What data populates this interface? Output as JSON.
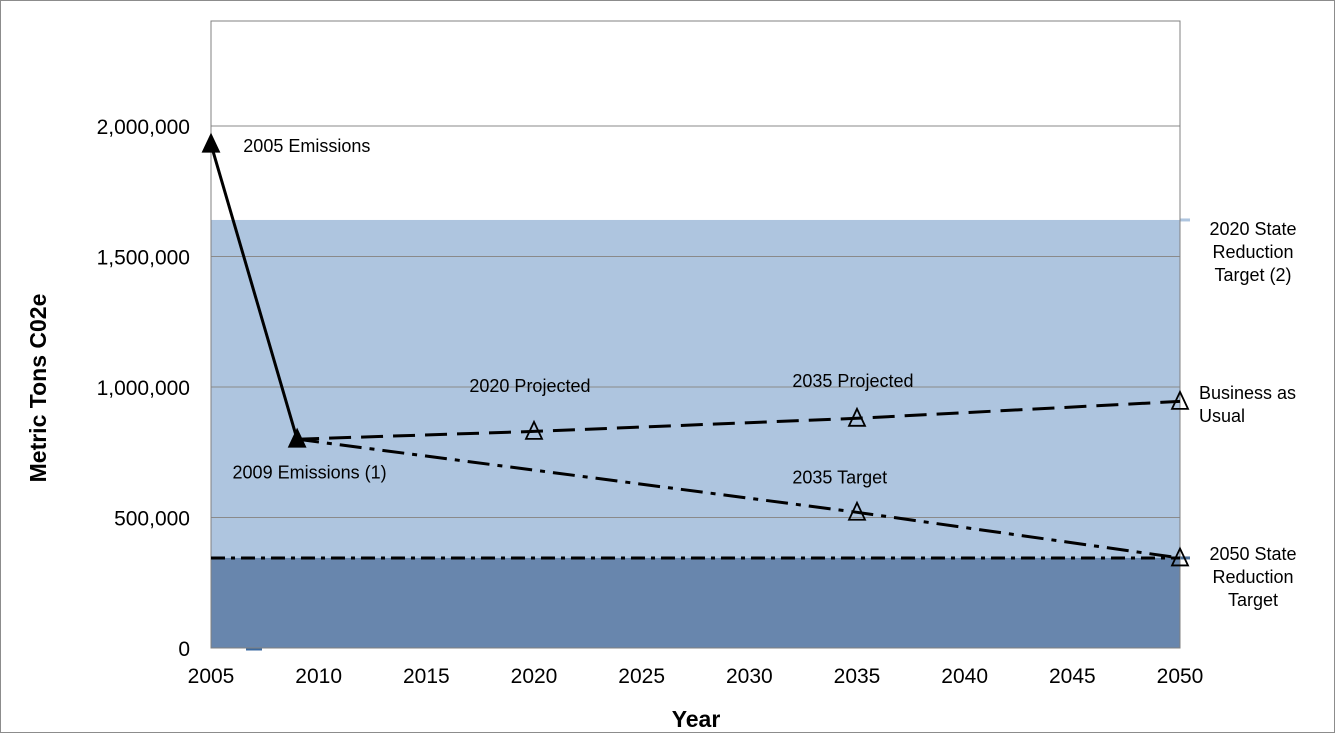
{
  "chart_data": {
    "type": "line",
    "xlabel": "Year",
    "ylabel": "Metric Tons C02e",
    "xlim": [
      2005,
      2050
    ],
    "ylim": [
      0,
      2000000
    ],
    "grid": true,
    "x_ticks": [
      2005,
      2010,
      2015,
      2020,
      2025,
      2030,
      2035,
      2040,
      2045,
      2050
    ],
    "x_tick_labels": [
      "2005",
      "2010",
      "2015",
      "2020",
      "2025",
      "2030",
      "2035",
      "2040",
      "2045",
      "2050"
    ],
    "y_ticks": [
      0,
      500000,
      1000000,
      1500000,
      2000000
    ],
    "y_tick_labels": [
      "0",
      "500,000",
      "1,000,000",
      "1,500,000",
      "2,000,000"
    ],
    "bands": [
      {
        "label": "2020 State Reduction Target (2)",
        "value": 1640000,
        "color": "#aec5df"
      },
      {
        "label": "2050 State Reduction Target",
        "value": 345000,
        "color": "#6886ad"
      }
    ],
    "series": [
      {
        "style": "solid",
        "marker": "filled-triangle",
        "color": "#000000",
        "x": [
          2005,
          2009
        ],
        "y": [
          1930000,
          800000
        ]
      },
      {
        "style": "dashed",
        "marker": "open-triangle",
        "color": "#000000",
        "x": [
          2009,
          2020,
          2035,
          2050
        ],
        "y": [
          800000,
          830000,
          880000,
          945000
        ]
      },
      {
        "style": "dash-dot",
        "marker": "open-triangle",
        "color": "#000000",
        "x": [
          2009,
          2035,
          2050
        ],
        "y": [
          800000,
          520000,
          345000
        ]
      },
      {
        "style": "dash-dot-thin",
        "marker": "none",
        "color": "#000000",
        "x": [
          2005,
          2050
        ],
        "y": [
          345000,
          345000
        ]
      }
    ],
    "annotations": [
      {
        "text": "2005 Emissions",
        "x": 2006.5,
        "y": 1900000
      },
      {
        "text": "2009 Emissions (1)",
        "x": 2006,
        "y": 650000
      },
      {
        "text": "2020 Projected",
        "x": 2017,
        "y": 980000
      },
      {
        "text": "2035 Projected",
        "x": 2032,
        "y": 1000000
      },
      {
        "text": "2035 Target",
        "x": 2032,
        "y": 630000
      }
    ],
    "side_labels": [
      {
        "lines": [
          "2020 State",
          "Reduction",
          "Target (2)"
        ]
      },
      {
        "lines": [
          "Business as",
          "Usual"
        ]
      },
      {
        "lines": [
          "2050 State",
          "Reduction",
          "Target"
        ]
      }
    ]
  }
}
